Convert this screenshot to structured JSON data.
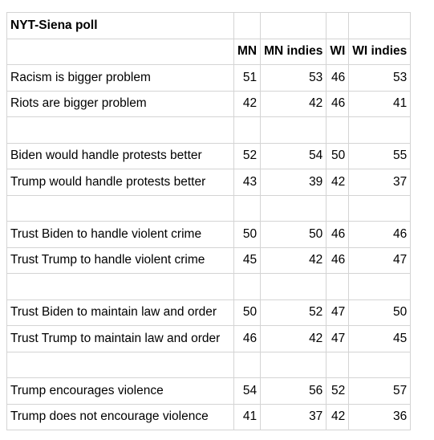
{
  "title": "NYT-Siena poll",
  "columns": [
    "MN",
    "MN indies",
    "WI",
    "WI indies"
  ],
  "rows": [
    {
      "label": "Racism is bigger problem",
      "values": [
        "51",
        "53",
        "46",
        "53"
      ]
    },
    {
      "label": "Riots are bigger problem",
      "values": [
        "42",
        "42",
        "46",
        "41"
      ]
    },
    {
      "label": "",
      "values": [
        "",
        "",
        "",
        ""
      ]
    },
    {
      "label": "Biden would handle protests better",
      "values": [
        "52",
        "54",
        "50",
        "55"
      ]
    },
    {
      "label": "Trump would handle protests better",
      "values": [
        "43",
        "39",
        "42",
        "37"
      ]
    },
    {
      "label": "",
      "values": [
        "",
        "",
        "",
        ""
      ]
    },
    {
      "label": "Trust Biden to handle violent crime",
      "values": [
        "50",
        "50",
        "46",
        "46"
      ]
    },
    {
      "label": "Trust Trump to handle violent crime",
      "values": [
        "45",
        "42",
        "46",
        "47"
      ]
    },
    {
      "label": "",
      "values": [
        "",
        "",
        "",
        ""
      ]
    },
    {
      "label": "Trust Biden to maintain law and order",
      "values": [
        "50",
        "52",
        "47",
        "50"
      ]
    },
    {
      "label": "Trust Trump to maintain law and order",
      "values": [
        "46",
        "42",
        "47",
        "45"
      ]
    },
    {
      "label": "",
      "values": [
        "",
        "",
        "",
        ""
      ]
    },
    {
      "label": "Trump encourages violence",
      "values": [
        "54",
        "56",
        "52",
        "57"
      ]
    },
    {
      "label": "Trump does not encourage violence",
      "values": [
        "41",
        "37",
        "42",
        "36"
      ]
    }
  ]
}
